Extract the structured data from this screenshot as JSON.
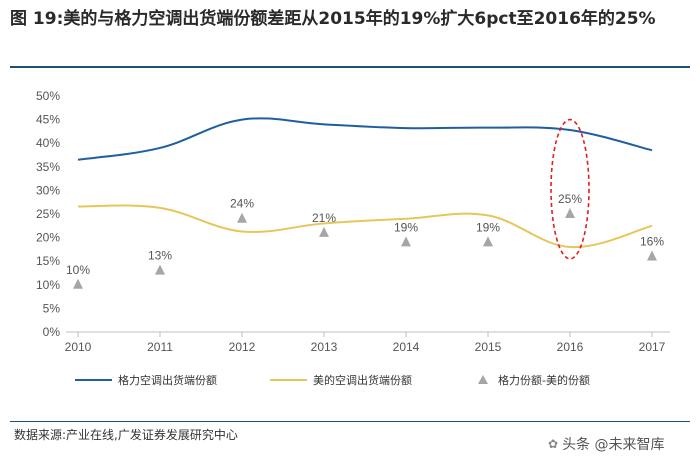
{
  "header": {
    "title": "图 19:美的与格力空调出货端份额差距从2015年的19%扩大6pct至2016年的25%"
  },
  "chart_data": {
    "type": "line",
    "categories": [
      "2010",
      "2011",
      "2012",
      "2013",
      "2014",
      "2015",
      "2016",
      "2017"
    ],
    "yticks": [
      "0%",
      "5%",
      "10%",
      "15%",
      "20%",
      "25%",
      "30%",
      "35%",
      "40%",
      "45%",
      "50%"
    ],
    "ylim": [
      0,
      50
    ],
    "series": [
      {
        "name": "格力空调出货端份额",
        "kind": "line",
        "color": "#1f5f9f",
        "values": [
          36.5,
          39.0,
          45.0,
          44.0,
          43.2,
          43.3,
          42.8,
          38.5
        ]
      },
      {
        "name": "美的空调出货端份额",
        "kind": "line",
        "color": "#e6c65a",
        "values": [
          26.6,
          26.3,
          21.3,
          23.0,
          24.0,
          24.7,
          18.0,
          22.5
        ]
      },
      {
        "name": "格力份额-美的份额",
        "kind": "marker",
        "color": "#a6a6a6",
        "values": [
          10,
          13,
          24,
          21,
          19,
          19,
          25,
          16
        ],
        "labels": [
          "10%",
          "13%",
          "24%",
          "21%",
          "19%",
          "19%",
          "25%",
          "16%"
        ]
      }
    ],
    "highlight": {
      "category": "2016",
      "color": "#e02020"
    }
  },
  "legend": {
    "gree": "格力空调出货端份额",
    "midea": "美的空调出货端份额",
    "diff": "格力份额-美的份额"
  },
  "footer": {
    "source": "数据来源:产业在线,广发证券发展研究中心",
    "watermark": "头条 @未来智库"
  }
}
